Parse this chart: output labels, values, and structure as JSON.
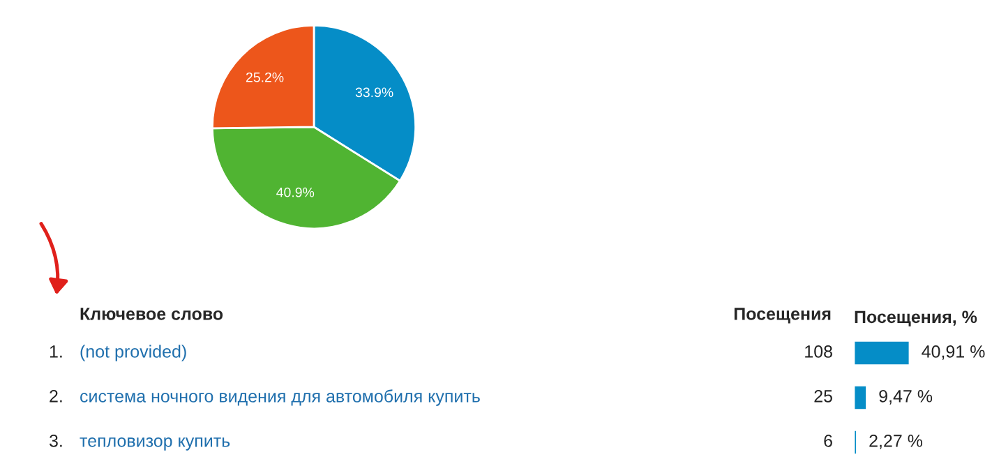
{
  "chart_data": [
    {
      "type": "pie",
      "categories": [
        null,
        null,
        null
      ],
      "values": [
        33.9,
        40.9,
        25.2
      ],
      "colors": [
        "#058dc7",
        "#50b432",
        "#ed561b"
      ],
      "value_labels": [
        "33.9%",
        "40.9%",
        "25.2%"
      ]
    },
    {
      "type": "bar",
      "orientation": "horizontal",
      "title": "Посещения, %",
      "ylabel": "Ключевое слово",
      "categories": [
        "(not provided)",
        "система ночного видения для автомобиля купить",
        "тепловизор купить"
      ],
      "values": [
        40.91,
        9.47,
        2.27
      ],
      "color": "#058dc7",
      "value_labels": [
        "40,91 %",
        "9,47 %",
        "2,27 %"
      ],
      "annotations": [
        "Посещения",
        "108",
        "25",
        "6",
        "1.",
        "2.",
        "3."
      ]
    }
  ]
}
